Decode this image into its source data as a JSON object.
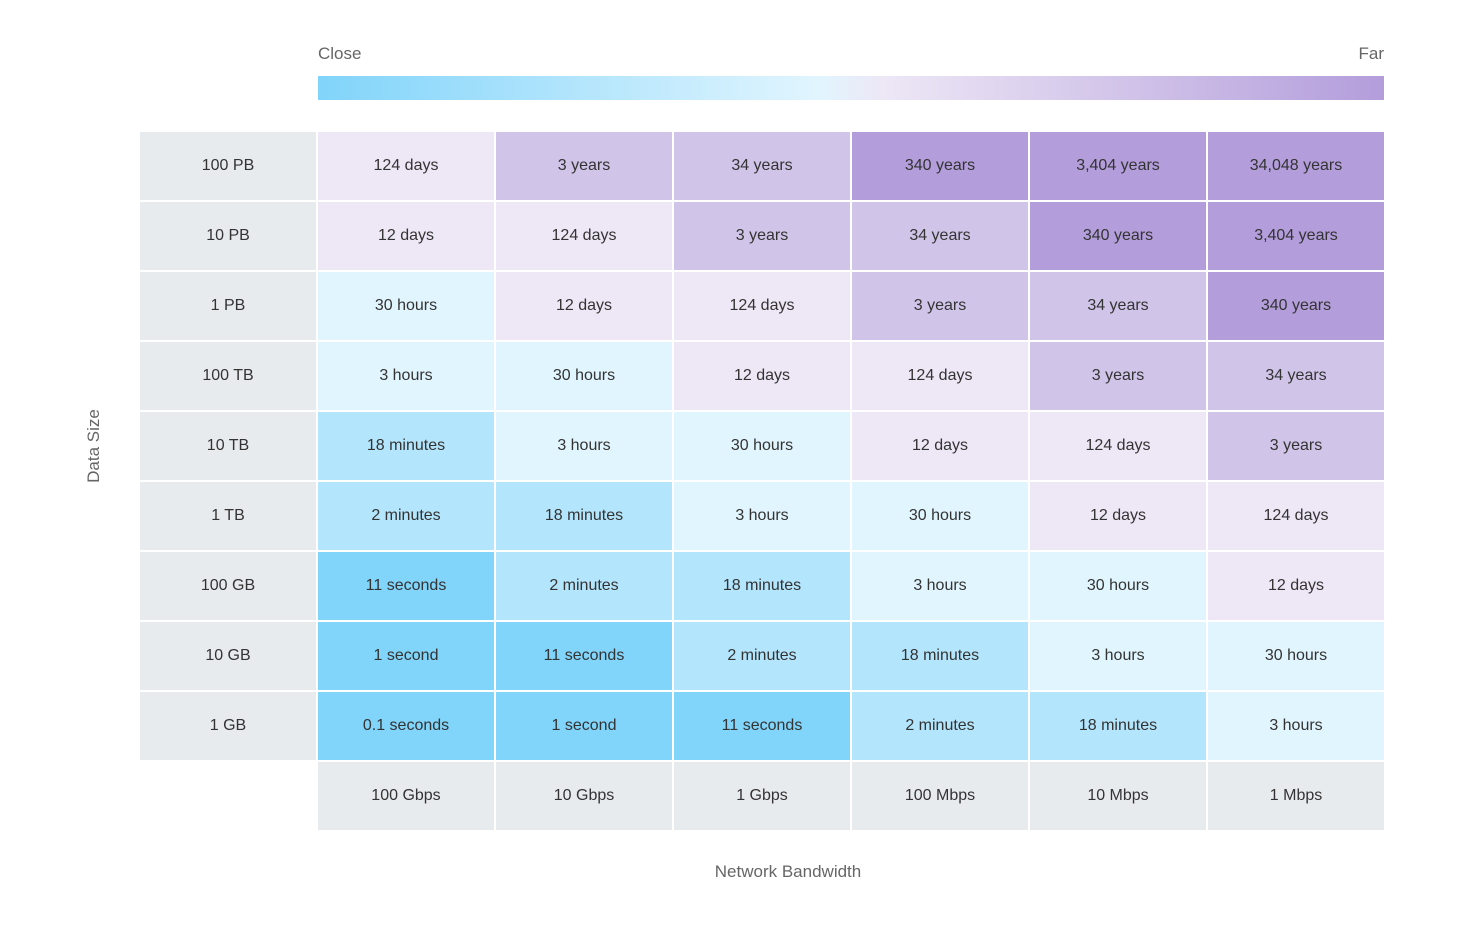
{
  "legend": {
    "low": "Close",
    "high": "Far"
  },
  "y_axis_label": "Data Size",
  "x_axis_label": "Network Bandwidth",
  "row_headers": [
    "100 PB",
    "10 PB",
    "1 PB",
    "100 TB",
    "10 TB",
    "1 TB",
    "100 GB",
    "10 GB",
    "1 GB"
  ],
  "column_headers": [
    "100 Gbps",
    "10 Gbps",
    "1 Gbps",
    "100 Mbps",
    "10 Mbps",
    "1 Mbps"
  ],
  "rows": [
    [
      "124 days",
      "3 years",
      "34 years",
      "340 years",
      "3,404 years",
      "34,048 years"
    ],
    [
      "12 days",
      "124 days",
      "3 years",
      "34 years",
      "340 years",
      "3,404 years"
    ],
    [
      "30 hours",
      "12 days",
      "124 days",
      "3 years",
      "34 years",
      "340 years"
    ],
    [
      "3 hours",
      "30 hours",
      "12 days",
      "124 days",
      "3 years",
      "34 years"
    ],
    [
      "18 minutes",
      "3 hours",
      "30 hours",
      "12 days",
      "124 days",
      "3 years"
    ],
    [
      "2 minutes",
      "18 minutes",
      "3 hours",
      "30 hours",
      "12 days",
      "124 days"
    ],
    [
      "11 seconds",
      "2 minutes",
      "18 minutes",
      "3 hours",
      "30 hours",
      "12 days"
    ],
    [
      "1 second",
      "11 seconds",
      "2 minutes",
      "18 minutes",
      "3 hours",
      "30 hours"
    ],
    [
      "0.1 seconds",
      "1 second",
      "11 seconds",
      "2 minutes",
      "18 minutes",
      "3 hours"
    ]
  ]
}
